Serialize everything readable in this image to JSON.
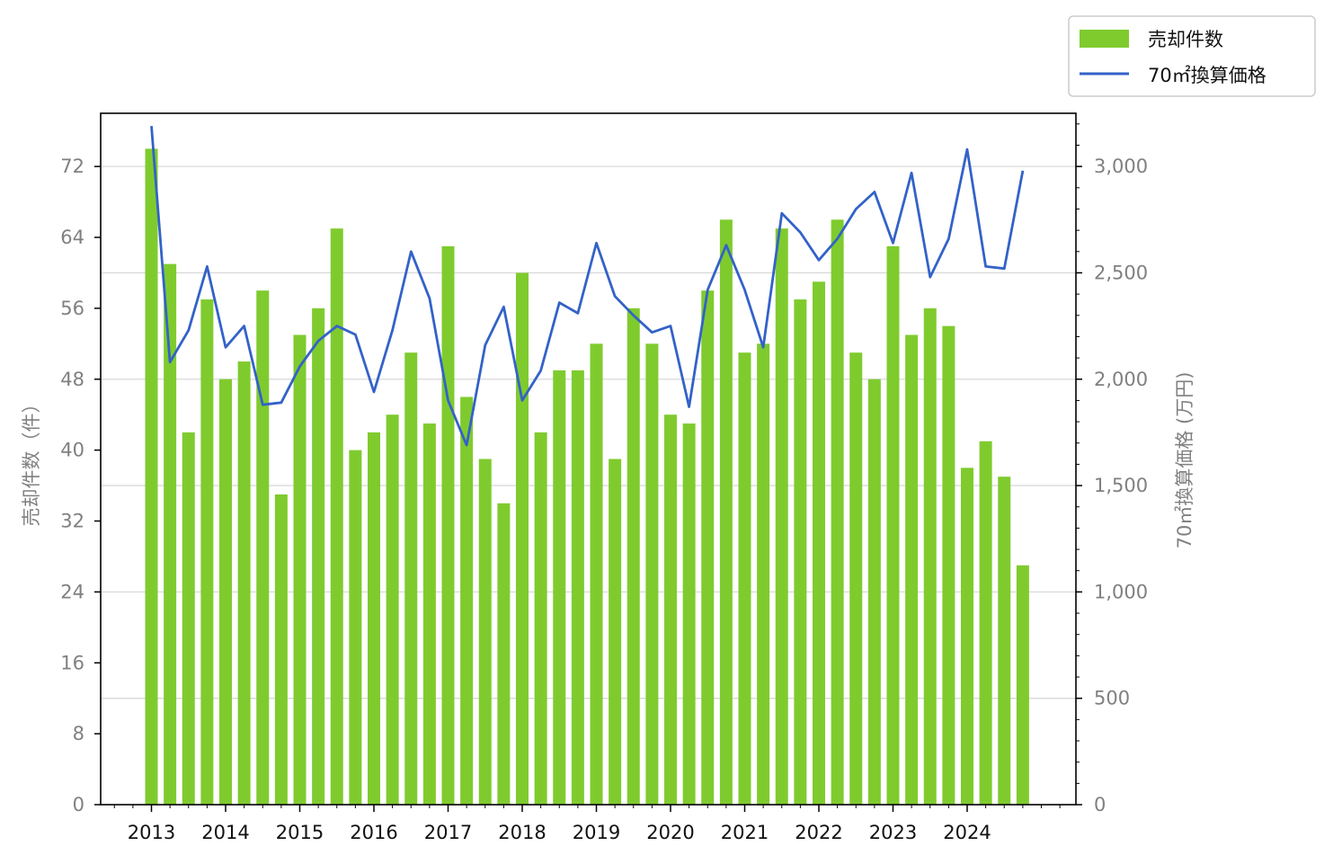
{
  "chart_data": {
    "type": "bar+line",
    "x_ticks": [
      "2013",
      "2014",
      "2015",
      "2016",
      "2017",
      "2018",
      "2019",
      "2020",
      "2021",
      "2022",
      "2023",
      "2024"
    ],
    "periods_per_year": 4,
    "start_year": 2013,
    "left_axis": {
      "label": "売却件数（件）",
      "ylim": [
        0,
        78
      ],
      "ticks": [
        0,
        8,
        16,
        24,
        32,
        40,
        48,
        56,
        64,
        72
      ]
    },
    "right_axis": {
      "label": "70㎡換算価格 (万円)",
      "ylim": [
        0,
        3250
      ],
      "ticks": [
        0,
        500,
        1000,
        1500,
        2000,
        2500,
        3000
      ],
      "tick_labels": [
        "0",
        "500",
        "1,000",
        "1,500",
        "2,000",
        "2,500",
        "3,000"
      ]
    },
    "series": [
      {
        "name": "売却件数",
        "type": "bar",
        "axis": "left",
        "color": "#7fcb2e",
        "values": [
          74,
          61,
          42,
          57,
          48,
          50,
          58,
          35,
          53,
          56,
          65,
          40,
          42,
          44,
          51,
          43,
          63,
          46,
          39,
          34,
          60,
          42,
          49,
          49,
          52,
          39,
          56,
          52,
          44,
          43,
          58,
          66,
          51,
          52,
          65,
          57,
          59,
          66,
          51,
          48,
          63,
          53,
          56,
          54,
          38,
          41,
          37,
          27
        ]
      },
      {
        "name": "70㎡換算価格",
        "type": "line",
        "axis": "right",
        "color": "#3362c8",
        "values": [
          3190,
          2080,
          2230,
          2530,
          2150,
          2250,
          1880,
          1890,
          2060,
          2180,
          2250,
          2210,
          1940,
          2230,
          2600,
          2380,
          1900,
          1690,
          2160,
          2340,
          1900,
          2040,
          2360,
          2310,
          2640,
          2390,
          2300,
          2220,
          2250,
          1870,
          2420,
          2630,
          2420,
          2150,
          2780,
          2690,
          2560,
          2660,
          2800,
          2880,
          2640,
          2970,
          2480,
          2660,
          3080,
          2530,
          2520,
          2980
        ]
      }
    ],
    "grid": "horizontal, right axis",
    "legend": "top-right, outside plot"
  }
}
